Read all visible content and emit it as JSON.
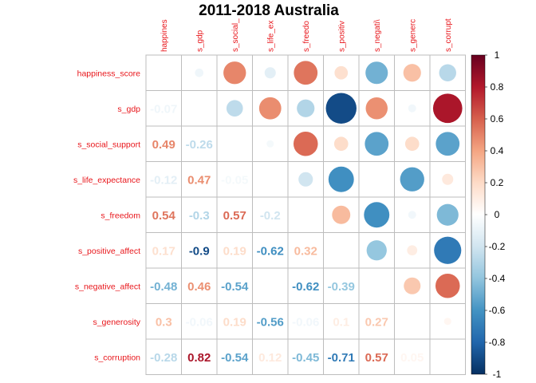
{
  "chart_data": {
    "type": "heatmap",
    "title": "2011-2018 Australia",
    "variables": [
      "happiness_score",
      "s_gdp",
      "s_social_support",
      "s_life_expectance",
      "s_freedom",
      "s_positive_affect",
      "s_negative_affect",
      "s_generosity",
      "s_corruption"
    ],
    "column_labels": [
      "happines",
      "s_gdp",
      "s_social_",
      "s_life_ex",
      "s_freedo",
      "s_positiv",
      "s_negati\\",
      "s_generc",
      "s_corrupt"
    ],
    "lower_triangle": "numbers",
    "upper_triangle": "circles",
    "matrix": [
      [
        1.0,
        -0.07,
        0.49,
        -0.12,
        0.54,
        0.17,
        -0.48,
        0.3,
        -0.28
      ],
      [
        -0.07,
        1.0,
        -0.26,
        0.47,
        -0.3,
        -0.9,
        0.46,
        -0.06,
        0.82
      ],
      [
        0.49,
        -0.26,
        1.0,
        -0.05,
        0.57,
        0.19,
        -0.54,
        0.19,
        -0.54
      ],
      [
        -0.12,
        0.47,
        -0.05,
        1.0,
        -0.2,
        -0.62,
        0.0,
        -0.56,
        0.12
      ],
      [
        0.54,
        -0.3,
        0.57,
        -0.2,
        1.0,
        0.32,
        -0.62,
        -0.06,
        -0.45
      ],
      [
        0.17,
        -0.9,
        0.19,
        -0.62,
        0.32,
        1.0,
        -0.39,
        0.1,
        -0.71
      ],
      [
        -0.48,
        0.46,
        -0.54,
        0.0,
        -0.62,
        -0.39,
        1.0,
        0.27,
        0.57
      ],
      [
        0.3,
        -0.06,
        0.19,
        -0.56,
        -0.06,
        0.1,
        0.27,
        1.0,
        0.05
      ],
      [
        -0.28,
        0.82,
        -0.54,
        0.12,
        -0.45,
        -0.71,
        0.57,
        0.05,
        1.0
      ]
    ],
    "number_labels": [
      [],
      [
        "-0.07"
      ],
      [
        "0.49",
        "-0.26"
      ],
      [
        "-0.12",
        "0.47",
        "-0.05"
      ],
      [
        "0.54",
        "-0.3",
        "0.57",
        "-0.2"
      ],
      [
        "0.17",
        "-0.9",
        "0.19",
        "-0.62",
        "0.32"
      ],
      [
        "-0.48",
        "0.46",
        "-0.54",
        "0",
        "-0.62",
        "-0.39"
      ],
      [
        "0.3",
        "-0.06",
        "0.19",
        "-0.56",
        "-0.06",
        "0.1",
        "0.27"
      ],
      [
        "-0.28",
        "0.82",
        "-0.54",
        "0.12",
        "-0.45",
        "-0.71",
        "0.57",
        "0.05"
      ]
    ],
    "colorbar": {
      "range": [
        -1,
        1
      ],
      "ticks": [
        "1",
        "0.8",
        "0.6",
        "0.4",
        "0.2",
        "0",
        "-0.2",
        "-0.4",
        "-0.6",
        "-0.8",
        "-1"
      ],
      "colors": [
        "#67001f",
        "#b2182b",
        "#d6604d",
        "#f4a582",
        "#fddbc7",
        "#ffffff",
        "#d1e5f0",
        "#92c5de",
        "#4393c3",
        "#2166ac",
        "#053061"
      ]
    },
    "label_color": "#e8161b",
    "grid": true
  }
}
